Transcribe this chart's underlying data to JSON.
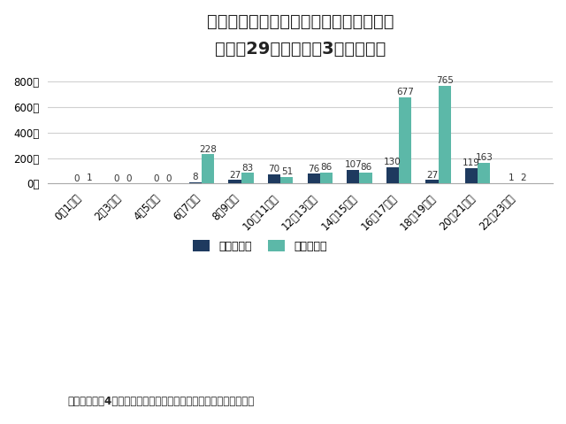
{
  "title_line1": "児童の歩行中の時間帯別死者・重傷者数",
  "title_line2": "（平成29年度～令和3年度合計）",
  "categories": [
    "0～1時台",
    "2～3時台",
    "4～5時台",
    "6～7時台",
    "8～9時台",
    "10～11時台",
    "12～13時台",
    "14～15時台",
    "16～17時台",
    "18～19時台",
    "20～21時台",
    "22～23時台"
  ],
  "sat_sun": [
    0,
    0,
    0,
    8,
    27,
    70,
    76,
    107,
    130,
    27,
    119,
    1
  ],
  "mon_fri": [
    1,
    0,
    0,
    228,
    83,
    51,
    86,
    86,
    677,
    765,
    163,
    2
  ],
  "sat_sun_label": "土～日曜日",
  "mon_fri_label": "月～金曜日",
  "sat_sun_color": "#1e3a5f",
  "mon_fri_color": "#5cb8a8",
  "ylabel": "人",
  "yticks": [
    0,
    200,
    400,
    600,
    800
  ],
  "ytick_labels": [
    "0人",
    "200人",
    "400人",
    "600人",
    "800人"
  ],
  "ylim": [
    0,
    870
  ],
  "source": "警察庁「令和4年春の全国交通安全運動の実施について」より作成",
  "background_color": "#ffffff",
  "grid_color": "#d0d0d0",
  "label_fontsize": 7.5,
  "tick_fontsize": 8.5,
  "title1_fontsize": 14,
  "title2_fontsize": 11,
  "source_fontsize": 8.5
}
